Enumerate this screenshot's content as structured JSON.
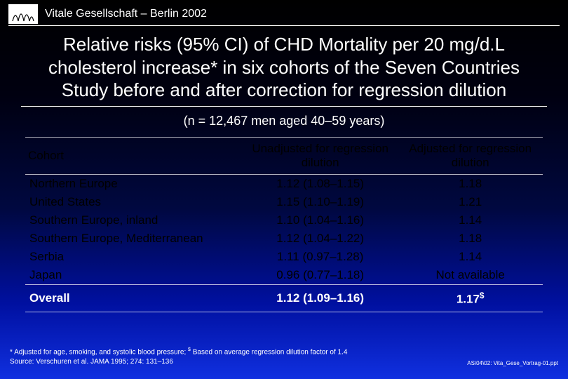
{
  "header": {
    "text": "Vitale Gesellschaft – Berlin 2002"
  },
  "title": "Relative risks (95% CI) of CHD Mortality per 20 mg/d.L cholesterol increase* in six cohorts of the Seven Countries Study before and after correction for regression dilution",
  "subtitle": "(n = 12,467 men aged 40–59 years)",
  "table": {
    "headers": {
      "c1": "Cohort",
      "c2": "Unadjusted for regression dilution",
      "c3": "Adjusted for regression dilution"
    },
    "rows": [
      {
        "cohort": "Northern Europe",
        "unadjusted": "1.12 (1.08–1.15)",
        "adjusted": "1.18"
      },
      {
        "cohort": "United States",
        "unadjusted": "1.15 (1.10–1.19)",
        "adjusted": "1.21"
      },
      {
        "cohort": "Southern Europe, inland",
        "unadjusted": "1.10 (1.04–1.16)",
        "adjusted": "1.14"
      },
      {
        "cohort": "Southern Europe, Mediterranean",
        "unadjusted": "1.12 (1.04–1.22)",
        "adjusted": "1.18"
      },
      {
        "cohort": "Serbia",
        "unadjusted": "1.11 (0.97–1.28)",
        "adjusted": "1.14"
      },
      {
        "cohort": "Japan",
        "unadjusted": "0.96 (0.77–1.18)",
        "adjusted": "Not available"
      }
    ],
    "overall": {
      "label": "Overall",
      "unadjusted": "1.12 (1.09–1.16)",
      "adjusted": "1.17",
      "adjusted_sup": "$"
    }
  },
  "footnote": {
    "line1_a": "* Adjusted for age, smoking, and systolic blood pressure; ",
    "line1_sup": "$",
    "line1_b": " Based on average regression dilution factor of 1.4",
    "line2": "Source: Verschuren et al. JAMA 1995; 274: 131–136"
  },
  "citation": "AS\\04\\02: Vita_Gese_Vortrag-01.ppt"
}
